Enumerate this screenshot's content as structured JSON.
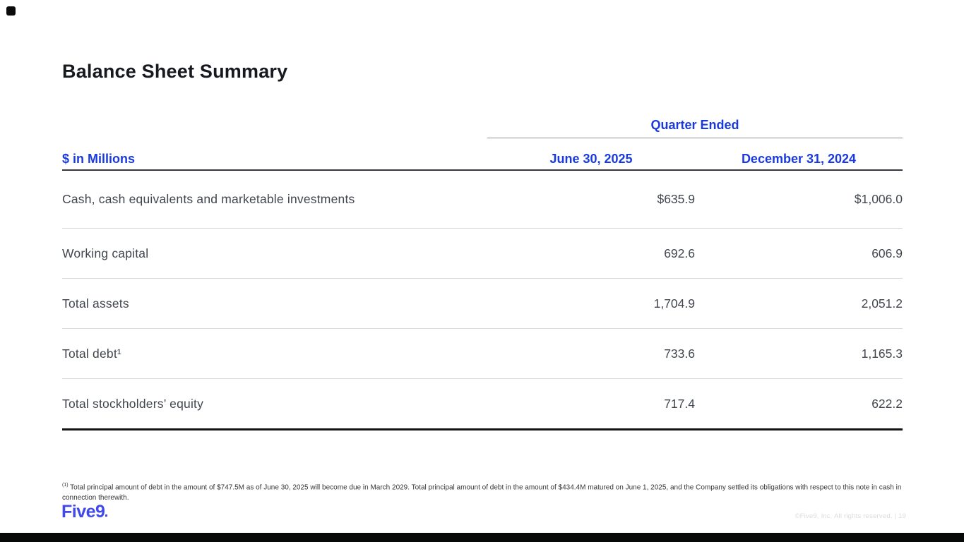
{
  "title": "Balance Sheet Summary",
  "table": {
    "group_header": "Quarter Ended",
    "units_label": "$ in Millions",
    "columns": [
      "June 30, 2025",
      "December 31, 2024"
    ],
    "rows": [
      {
        "label": "Cash, cash equivalents and marketable investments",
        "values": [
          "$635.9",
          "$1,006.0"
        ]
      },
      {
        "label": "Working capital",
        "values": [
          "692.6",
          "606.9"
        ]
      },
      {
        "label": "Total assets",
        "values": [
          "1,704.9",
          "2,051.2"
        ]
      },
      {
        "label": "Total debt¹",
        "values": [
          "733.6",
          "1,165.3"
        ]
      },
      {
        "label": "Total stockholders’ equity",
        "values": [
          "717.4",
          "622.2"
        ]
      }
    ]
  },
  "footnote": {
    "marker": "(1)",
    "text": "Total principal amount of debt in the amount of $747.5M as of June 30, 2025 will become due in March 2029.  Total principal amount of debt in the amount of $434.4M matured on June 1, 2025, and the Company settled its obligations with respect to this note in cash in connection therewith."
  },
  "logo_text": "Five9",
  "footer_right": "©Five9, Inc. All rights reserved. | 19",
  "colors": {
    "accent_blue": "#1a3ae0",
    "logo_blue": "#4149e9",
    "text_dark": "#41464e"
  }
}
